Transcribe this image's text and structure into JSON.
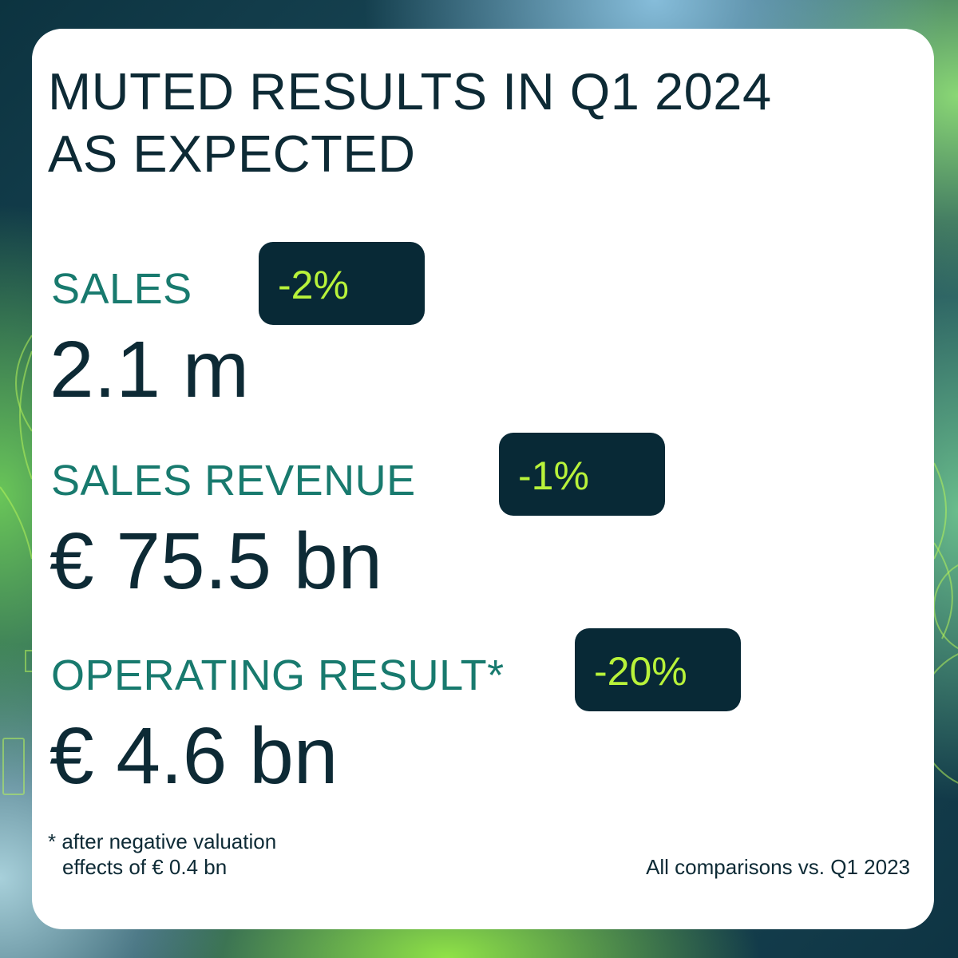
{
  "title": {
    "line1": "MUTED RESULTS IN Q1 2024",
    "line2": "AS EXPECTED"
  },
  "metrics": [
    {
      "label": "SALES",
      "change": "-2%",
      "value": "2.1 m"
    },
    {
      "label": "SALES REVENUE",
      "change": "-1%",
      "value": "€ 75.5 bn"
    },
    {
      "label": "OPERATING RESULT*",
      "change": "-20%",
      "value": "€ 4.6 bn"
    }
  ],
  "footnote": {
    "line1": "* after negative valuation",
    "line2": "effects of € 0.4 bn"
  },
  "comparison_note": "All comparisons vs. Q1 2023",
  "colors": {
    "card_background": "#ffffff",
    "title_text": "#0d2a35",
    "metric_label": "#187a6e",
    "badge_background": "#082936",
    "badge_text": "#b8f23a",
    "value_text": "#0d2a35"
  }
}
